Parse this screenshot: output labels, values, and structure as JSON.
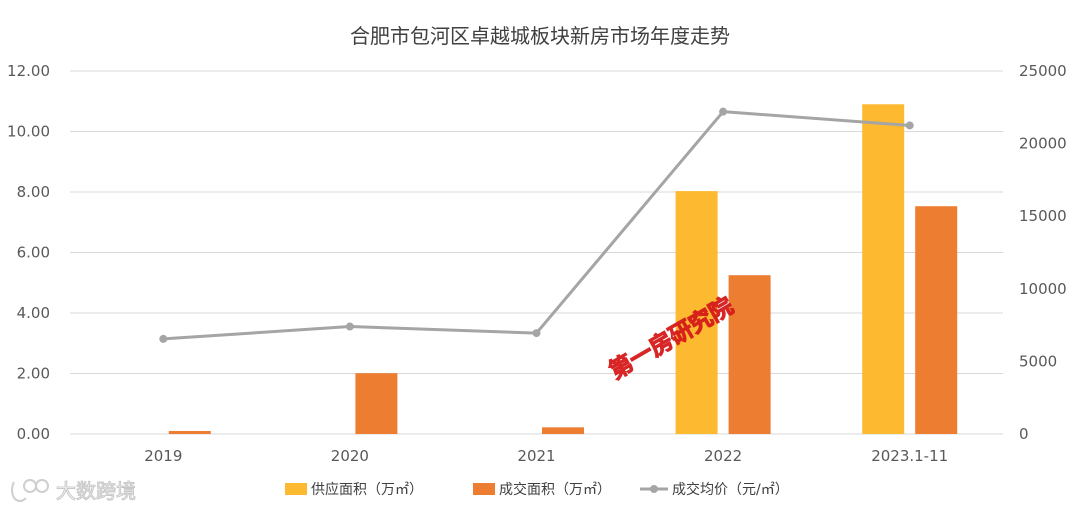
{
  "chart_data": {
    "type": "bar",
    "title": "合肥市包河区卓越城板块新房市场年度走势",
    "categories": [
      "2019",
      "2020",
      "2021",
      "2022",
      "2023.1-11"
    ],
    "series": [
      {
        "name": "供应面积（万㎡）",
        "type": "bar",
        "axis": "left",
        "color": "#FDB92F",
        "values": [
          0,
          0,
          0,
          8.03,
          10.9
        ]
      },
      {
        "name": "成交面积（万㎡）",
        "type": "bar",
        "axis": "left",
        "color": "#ED7D31",
        "values": [
          0.1,
          2.01,
          0.22,
          5.25,
          7.53
        ]
      },
      {
        "name": "成交均价（元/㎡）",
        "type": "line",
        "axis": "right",
        "color": "#A5A5A5",
        "values": [
          6550,
          7400,
          6950,
          22200,
          21250
        ]
      }
    ],
    "y_left": {
      "min": 0,
      "max": 12,
      "step": 2,
      "ticks": [
        "0.00",
        "2.00",
        "4.00",
        "6.00",
        "8.00",
        "10.00",
        "12.00"
      ]
    },
    "y_right": {
      "min": 0,
      "max": 25000,
      "step": 5000,
      "ticks": [
        "0",
        "5000",
        "10000",
        "15000",
        "20000",
        "25000"
      ]
    },
    "grid": true,
    "legend": "bottom",
    "watermark": "第一房研究院",
    "logo_text": "大数跨境"
  }
}
